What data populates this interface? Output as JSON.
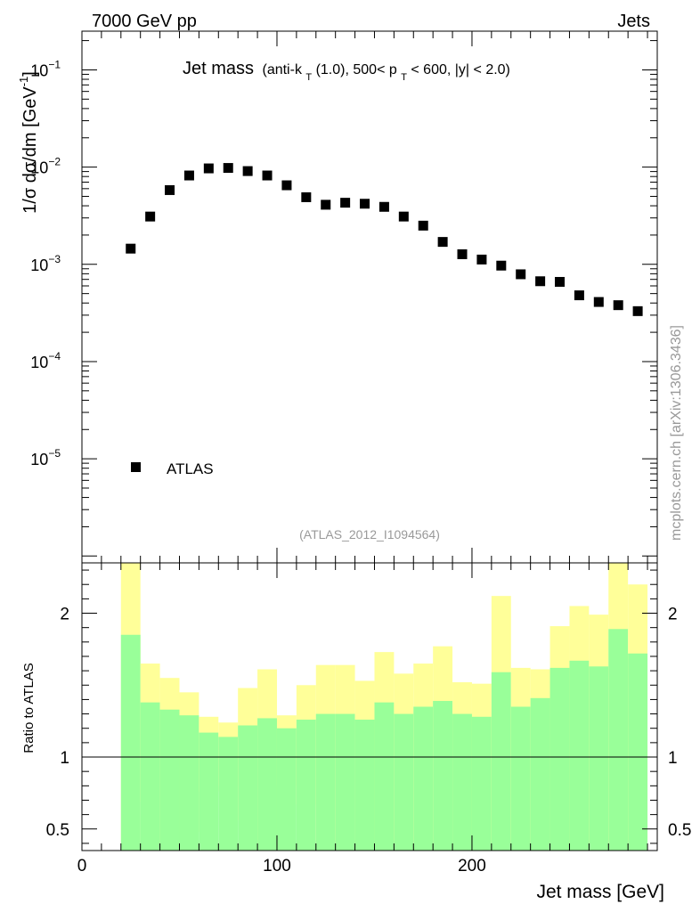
{
  "header": {
    "left": "7000 GeV pp",
    "right": "Jets"
  },
  "side_label": "mcplots.cern.ch [arXiv:1306.3436]",
  "colors": {
    "band_inner": "#99ff99",
    "band_outer": "#ffff99",
    "marker": "#000000",
    "axis": "#000000",
    "watermark": "#999999"
  },
  "chart_data": [
    {
      "type": "scatter",
      "title_main": "Jet mass",
      "title_detail_parts": [
        "(anti-k",
        "T",
        "(1.0), 500< p",
        "T",
        " < 600, |y| < 2.0)"
      ],
      "ylabel": "1/σ dσ/dm [GeV",
      "ylabel_sup": "-1",
      "ylabel_close": "]",
      "yscale": "log",
      "ylim": [
        8.5e-07,
        0.25
      ],
      "xlim": [
        0,
        295
      ],
      "y_ticks": [
        {
          "mantissa": "10",
          "exp": "−1"
        },
        {
          "mantissa": "10",
          "exp": "−2"
        },
        {
          "mantissa": "10",
          "exp": "−3"
        },
        {
          "mantissa": "10",
          "exp": "−4"
        },
        {
          "mantissa": "10",
          "exp": "−5"
        }
      ],
      "legend": "ATLAS",
      "legend_position": "bottom-left",
      "watermark": "(ATLAS_2012_I1094564)",
      "series": [
        {
          "name": "ATLAS",
          "x": [
            25,
            35,
            45,
            55,
            65,
            75,
            85,
            95,
            105,
            115,
            125,
            135,
            145,
            155,
            165,
            175,
            185,
            195,
            205,
            215,
            225,
            235,
            245,
            255,
            265,
            275,
            285
          ],
          "y": [
            0.00145,
            0.0031,
            0.0058,
            0.0082,
            0.0097,
            0.0098,
            0.0091,
            0.0082,
            0.0065,
            0.0049,
            0.0041,
            0.0043,
            0.0042,
            0.0039,
            0.0031,
            0.0025,
            0.0017,
            0.00127,
            0.00112,
            0.00097,
            0.00079,
            0.00067,
            0.00066,
            0.00048,
            0.00041,
            0.00038,
            0.00033
          ]
        }
      ]
    },
    {
      "type": "area",
      "ylabel": "Ratio to ATLAS",
      "xlabel": "Jet mass [GeV]",
      "ylim": [
        0.35,
        2.35
      ],
      "xlim": [
        0,
        295
      ],
      "x_ticks": [
        "0",
        "100",
        "200"
      ],
      "y_ticks": [
        "0.5",
        "1",
        "2"
      ],
      "reference_line": 1,
      "bins": [
        20,
        30,
        40,
        50,
        60,
        70,
        80,
        90,
        100,
        110,
        120,
        130,
        140,
        150,
        160,
        170,
        180,
        190,
        200,
        210,
        220,
        230,
        240,
        250,
        260,
        270,
        280,
        290
      ],
      "inner_band": {
        "lower": [
          0.35,
          0.35,
          0.35,
          0.35,
          0.35,
          0.35,
          0.35,
          0.35,
          0.35,
          0.35,
          0.35,
          0.35,
          0.35,
          0.35,
          0.35,
          0.35,
          0.35,
          0.35,
          0.35,
          0.35,
          0.35,
          0.35,
          0.35,
          0.35,
          0.35,
          0.35,
          0.35
        ],
        "upper": [
          1.85,
          1.38,
          1.33,
          1.29,
          1.17,
          1.14,
          1.22,
          1.27,
          1.2,
          1.26,
          1.3,
          1.3,
          1.26,
          1.38,
          1.3,
          1.35,
          1.39,
          1.3,
          1.28,
          1.59,
          1.35,
          1.41,
          1.62,
          1.67,
          1.63,
          1.89,
          1.72
        ]
      },
      "outer_band": {
        "lower": [
          0.35,
          0.69,
          0.35,
          0.48,
          0.76,
          0.8,
          0.56,
          0.35,
          0.8,
          0.67,
          0.35,
          0.4,
          0.39,
          0.35,
          0.41,
          0.35,
          0.35,
          0.35,
          0.35,
          0.35,
          0.35,
          0.35,
          0.35,
          0.35,
          0.35,
          0.35,
          0.35
        ],
        "upper": [
          2.35,
          1.65,
          1.55,
          1.45,
          1.28,
          1.24,
          1.48,
          1.61,
          1.29,
          1.5,
          1.64,
          1.64,
          1.53,
          1.73,
          1.58,
          1.65,
          1.77,
          1.52,
          1.51,
          2.12,
          1.62,
          1.61,
          1.91,
          2.05,
          1.99,
          2.35,
          2.2
        ]
      }
    }
  ]
}
